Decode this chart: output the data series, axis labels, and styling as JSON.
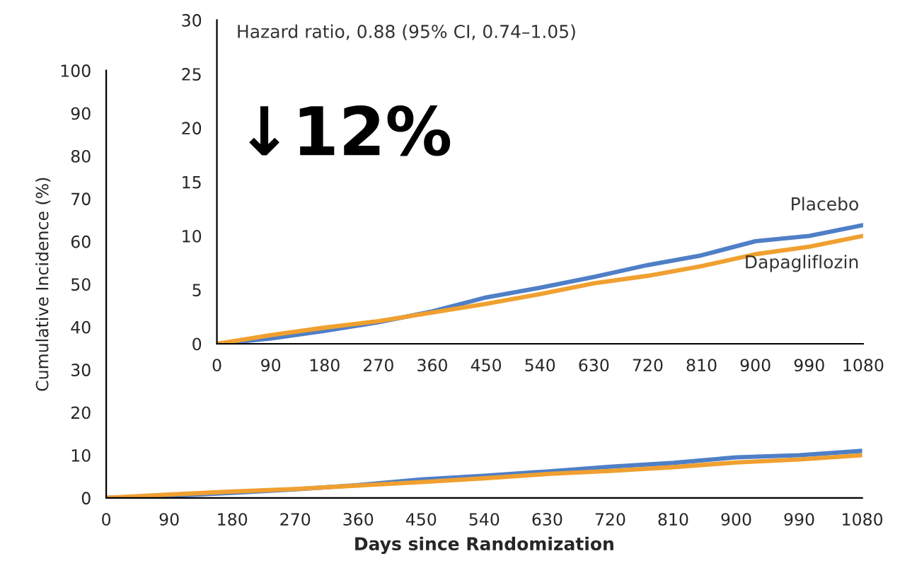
{
  "chart_data": [
    {
      "type": "line",
      "ylabel": "Cumulative Incidence (%)",
      "xlabel": "Days since Randomization",
      "x": [
        0,
        90,
        180,
        270,
        360,
        450,
        540,
        630,
        720,
        810,
        900,
        990,
        1080
      ],
      "series": [
        {
          "color": "#4f7fc6",
          "values": [
            0,
            0.5,
            1.2,
            2.0,
            3.0,
            4.3,
            5.2,
            6.2,
            7.3,
            8.2,
            9.5,
            10.0,
            11.0
          ]
        },
        {
          "color": "#f0a030",
          "values": [
            0,
            0.8,
            1.5,
            2.1,
            2.9,
            3.7,
            4.6,
            5.6,
            6.3,
            7.2,
            8.3,
            9.0,
            10.0
          ]
        }
      ],
      "xlim": [
        0,
        1080
      ],
      "xticks": [
        0,
        90,
        180,
        270,
        360,
        450,
        540,
        630,
        720,
        810,
        900,
        990,
        1080
      ],
      "ylim": [
        0,
        100
      ],
      "yticks": [
        0,
        10,
        20,
        30,
        40,
        50,
        60,
        70,
        80,
        90,
        100
      ],
      "grid": false,
      "legend": false
    },
    {
      "type": "line",
      "x": [
        0,
        90,
        180,
        270,
        360,
        450,
        540,
        630,
        720,
        810,
        900,
        990,
        1080
      ],
      "series": [
        {
          "name": "Placebo",
          "color": "#4f7fc6",
          "values": [
            0,
            0.5,
            1.2,
            2.0,
            3.0,
            4.3,
            5.2,
            6.2,
            7.3,
            8.2,
            9.5,
            10.0,
            11.0
          ]
        },
        {
          "name": "Dapagliflozin",
          "color": "#f0a030",
          "values": [
            0,
            0.8,
            1.5,
            2.1,
            2.9,
            3.7,
            4.6,
            5.6,
            6.3,
            7.2,
            8.3,
            9.0,
            10.0
          ]
        }
      ],
      "xlim": [
        0,
        1080
      ],
      "xticks": [
        0,
        90,
        180,
        270,
        360,
        450,
        540,
        630,
        720,
        810,
        900,
        990,
        1080
      ],
      "ylim": [
        0,
        30
      ],
      "yticks": [
        0,
        5,
        10,
        15,
        20,
        25,
        30
      ],
      "grid": false,
      "legend": false,
      "annotations": [
        "Hazard ratio, 0.88 (95% CI, 0.74–1.05)",
        "↓12%"
      ]
    }
  ]
}
